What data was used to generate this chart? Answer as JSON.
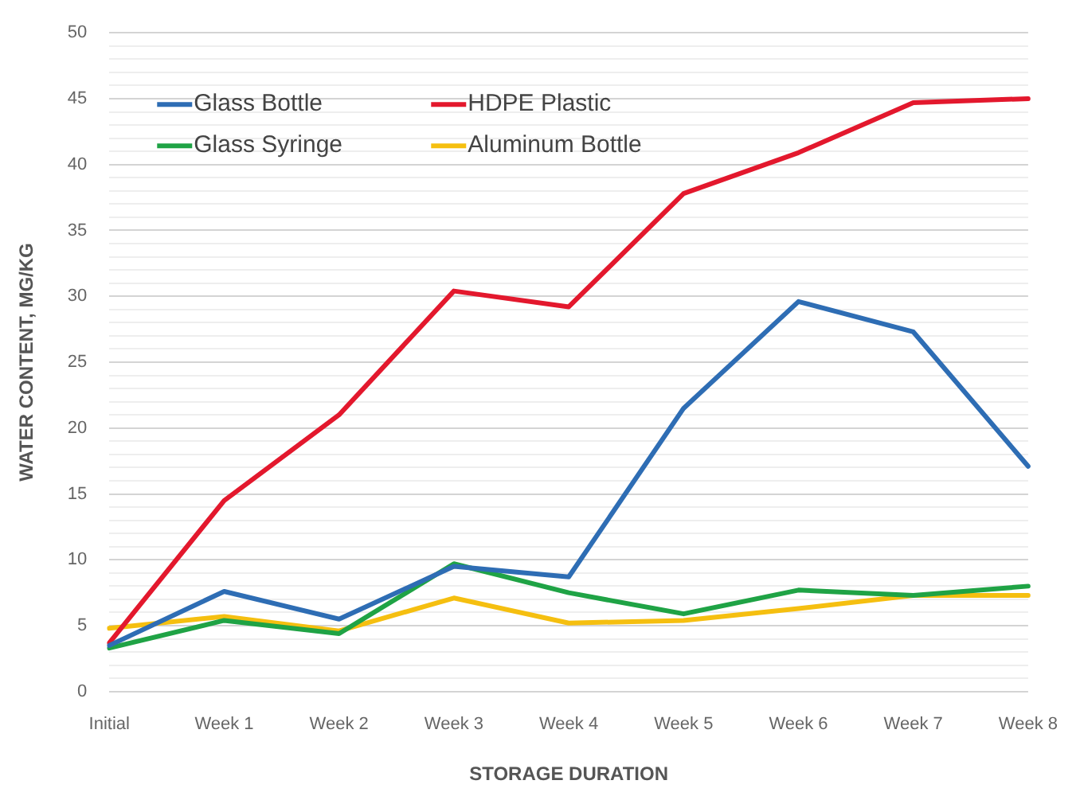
{
  "chart_data": {
    "type": "line",
    "xlabel": "STORAGE DURATION",
    "ylabel": "WATER CONTENT, MG/KG",
    "categories": [
      "Initial",
      "Week 1",
      "Week 2",
      "Week 3",
      "Week 4",
      "Week 5",
      "Week 6",
      "Week 7",
      "Week 8"
    ],
    "series": [
      {
        "name": "Glass Bottle",
        "color": "#2e6db4",
        "values": [
          3.5,
          7.6,
          5.5,
          9.5,
          8.7,
          21.5,
          29.6,
          27.3,
          17.1
        ]
      },
      {
        "name": "HDPE Plastic",
        "color": "#e3182d",
        "values": [
          3.7,
          14.5,
          21,
          30.4,
          29.2,
          37.8,
          40.9,
          44.7,
          45
        ]
      },
      {
        "name": "Glass Syringe",
        "color": "#1fa345",
        "values": [
          3.3,
          5.4,
          4.4,
          9.7,
          7.5,
          5.9,
          7.7,
          7.3,
          8.0
        ]
      },
      {
        "name": "Aluminum Bottle",
        "color": "#f5bf10",
        "values": [
          4.8,
          5.7,
          4.6,
          7.1,
          5.2,
          5.4,
          6.3,
          7.3,
          7.3
        ]
      }
    ],
    "ylim": [
      0,
      50
    ],
    "yticks": [
      0,
      {
        "value": 1,
        "label": null
      },
      {
        "value": 2,
        "label": null
      },
      {
        "value": 3,
        "label": null
      },
      {
        "value": 4,
        "label": null
      },
      5,
      {
        "value": 6,
        "label": null
      },
      {
        "value": 7,
        "label": null
      },
      {
        "value": 8,
        "label": null
      },
      {
        "value": 9,
        "label": null
      },
      10,
      {
        "value": 11,
        "label": null
      },
      {
        "value": 12,
        "label": null
      },
      {
        "value": 13,
        "label": null
      },
      {
        "value": 14,
        "label": null
      },
      15,
      {
        "value": 16,
        "label": null
      },
      {
        "value": 17,
        "label": null
      },
      {
        "value": 18,
        "label": null
      },
      {
        "value": 19,
        "label": null
      },
      20,
      {
        "value": 21,
        "label": null
      },
      {
        "value": 22,
        "label": null
      },
      {
        "value": 23,
        "label": null
      },
      {
        "value": 24,
        "label": null
      },
      25,
      {
        "value": 26,
        "label": null
      },
      {
        "value": 27,
        "label": null
      },
      {
        "value": 28,
        "label": null
      },
      {
        "value": 29,
        "label": null
      },
      30,
      {
        "value": 31,
        "label": null
      },
      {
        "value": 32,
        "label": null
      },
      {
        "value": 33,
        "label": null
      },
      {
        "value": 34,
        "label": null
      },
      35,
      {
        "value": 36,
        "label": null
      },
      {
        "value": 37,
        "label": null
      },
      {
        "value": 38,
        "label": null
      },
      {
        "value": 39,
        "label": null
      },
      40,
      {
        "value": 41,
        "label": null
      },
      {
        "value": 42,
        "label": null
      },
      {
        "value": 43,
        "label": null
      },
      {
        "value": 44,
        "label": null
      },
      45,
      {
        "value": 46,
        "label": null
      },
      {
        "value": 47,
        "label": null
      },
      {
        "value": 48,
        "label": null
      },
      {
        "value": 49,
        "label": null
      },
      50
    ],
    "grid": "y",
    "legend": "top left",
    "marker": "none",
    "line_style": "solid"
  }
}
